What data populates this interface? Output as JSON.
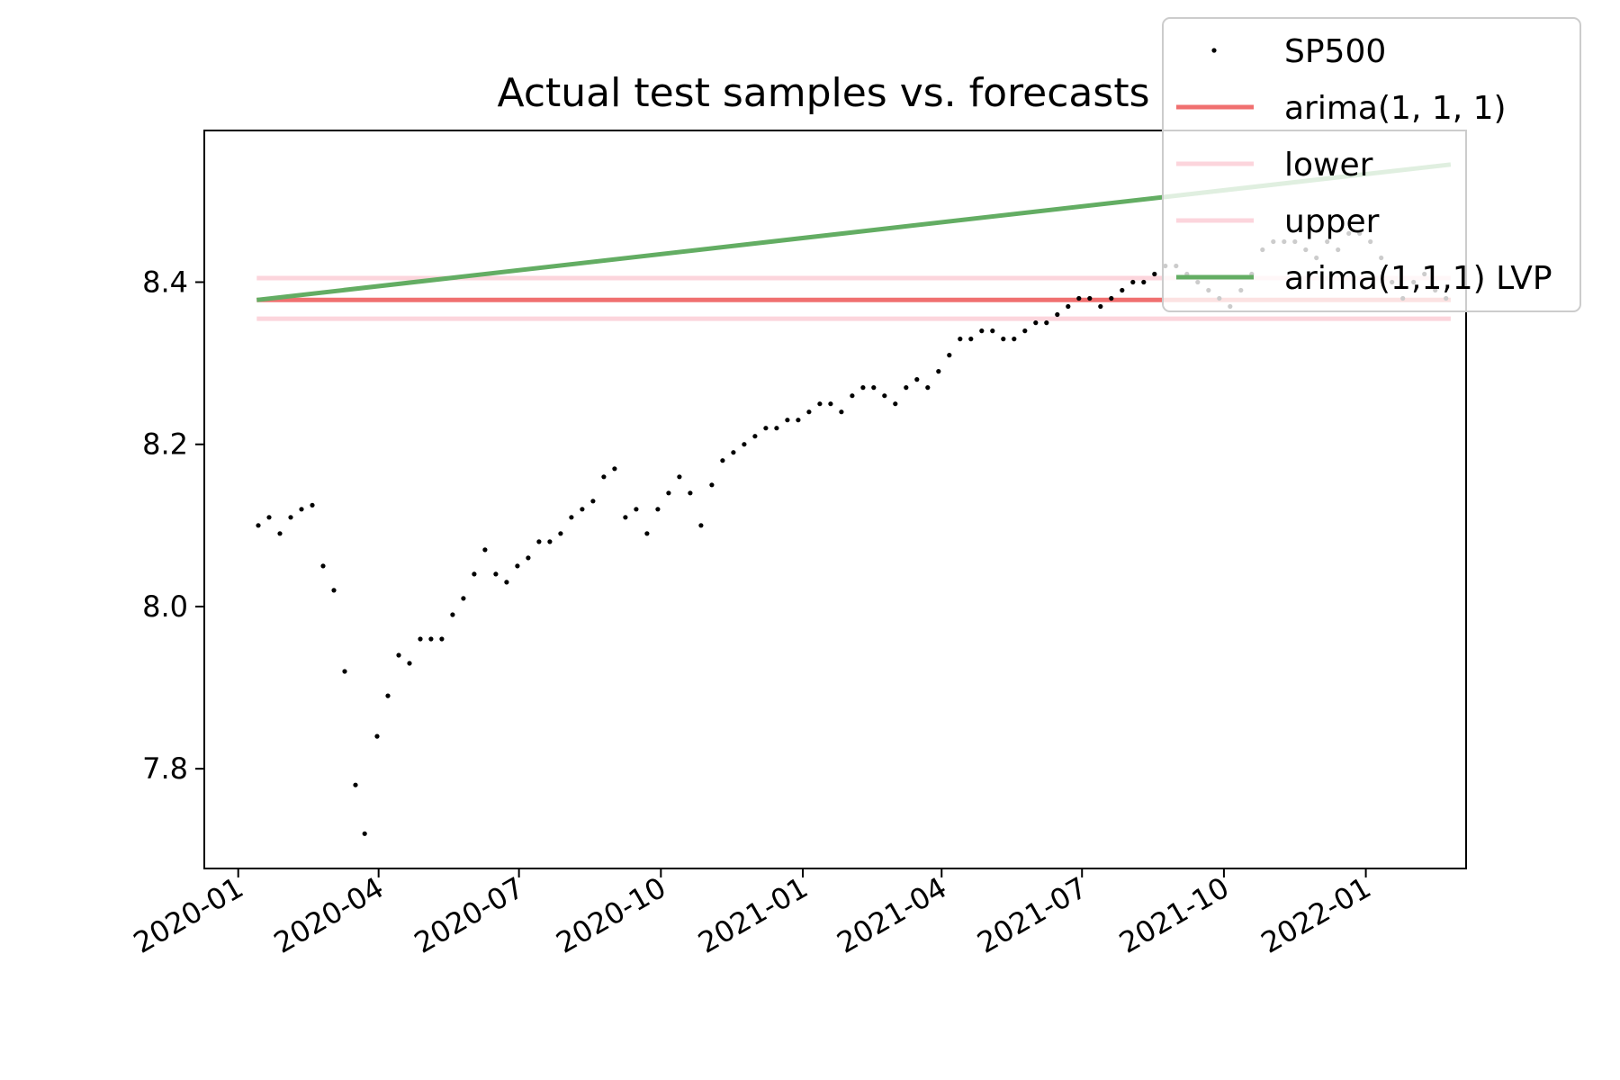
{
  "chart_data": {
    "type": "line",
    "title": "Actual test samples vs. forecasts",
    "xlabel": "",
    "ylabel": "",
    "xlim": [
      "2019-12-10",
      "2022-03-07"
    ],
    "ylim": [
      7.677,
      8.587
    ],
    "x_ticks": [
      "2020-01",
      "2020-04",
      "2020-07",
      "2020-10",
      "2021-01",
      "2021-04",
      "2021-07",
      "2021-10",
      "2022-01"
    ],
    "y_ticks": [
      7.8,
      8.0,
      8.2,
      8.4
    ],
    "grid": false,
    "legend_position": "top-right",
    "series": [
      {
        "name": "SP500",
        "kind": "scatter",
        "color": "#000000",
        "x": [
          "2020-01-14",
          "2020-01-21",
          "2020-01-28",
          "2020-02-04",
          "2020-02-11",
          "2020-02-18",
          "2020-02-25",
          "2020-03-03",
          "2020-03-10",
          "2020-03-17",
          "2020-03-23",
          "2020-03-31",
          "2020-04-07",
          "2020-04-14",
          "2020-04-21",
          "2020-04-28",
          "2020-05-05",
          "2020-05-12",
          "2020-05-19",
          "2020-05-26",
          "2020-06-02",
          "2020-06-09",
          "2020-06-16",
          "2020-06-23",
          "2020-06-30",
          "2020-07-07",
          "2020-07-14",
          "2020-07-21",
          "2020-07-28",
          "2020-08-04",
          "2020-08-11",
          "2020-08-18",
          "2020-08-25",
          "2020-09-01",
          "2020-09-08",
          "2020-09-15",
          "2020-09-22",
          "2020-09-29",
          "2020-10-06",
          "2020-10-13",
          "2020-10-20",
          "2020-10-27",
          "2020-11-03",
          "2020-11-10",
          "2020-11-17",
          "2020-11-24",
          "2020-12-01",
          "2020-12-08",
          "2020-12-15",
          "2020-12-22",
          "2020-12-29",
          "2021-01-05",
          "2021-01-12",
          "2021-01-19",
          "2021-01-26",
          "2021-02-02",
          "2021-02-09",
          "2021-02-16",
          "2021-02-23",
          "2021-03-02",
          "2021-03-09",
          "2021-03-16",
          "2021-03-23",
          "2021-03-30",
          "2021-04-06",
          "2021-04-13",
          "2021-04-20",
          "2021-04-27",
          "2021-05-04",
          "2021-05-11",
          "2021-05-18",
          "2021-05-25",
          "2021-06-01",
          "2021-06-08",
          "2021-06-15",
          "2021-06-22",
          "2021-06-29",
          "2021-07-06",
          "2021-07-13",
          "2021-07-20",
          "2021-07-27",
          "2021-08-03",
          "2021-08-10",
          "2021-08-17",
          "2021-08-24",
          "2021-08-31",
          "2021-09-07",
          "2021-09-14",
          "2021-09-21",
          "2021-09-28",
          "2021-10-05",
          "2021-10-12",
          "2021-10-19",
          "2021-10-26",
          "2021-11-02",
          "2021-11-09",
          "2021-11-16",
          "2021-11-23",
          "2021-11-30",
          "2021-12-07",
          "2021-12-14",
          "2021-12-21",
          "2021-12-28",
          "2022-01-04",
          "2022-01-11",
          "2022-01-18",
          "2022-01-25",
          "2022-02-01",
          "2022-02-08",
          "2022-02-15",
          "2022-02-22"
        ],
        "y": [
          8.1,
          8.11,
          8.09,
          8.11,
          8.12,
          8.125,
          8.05,
          8.02,
          7.92,
          7.78,
          7.72,
          7.84,
          7.89,
          7.94,
          7.93,
          7.96,
          7.96,
          7.96,
          7.99,
          8.01,
          8.04,
          8.07,
          8.04,
          8.03,
          8.05,
          8.06,
          8.08,
          8.08,
          8.09,
          8.11,
          8.12,
          8.13,
          8.16,
          8.17,
          8.11,
          8.12,
          8.09,
          8.12,
          8.14,
          8.16,
          8.14,
          8.1,
          8.15,
          8.18,
          8.19,
          8.2,
          8.21,
          8.22,
          8.22,
          8.23,
          8.23,
          8.24,
          8.25,
          8.25,
          8.24,
          8.26,
          8.27,
          8.27,
          8.26,
          8.25,
          8.27,
          8.28,
          8.27,
          8.29,
          8.31,
          8.33,
          8.33,
          8.34,
          8.34,
          8.33,
          8.33,
          8.34,
          8.35,
          8.35,
          8.36,
          8.37,
          8.38,
          8.38,
          8.37,
          8.38,
          8.39,
          8.4,
          8.4,
          8.41,
          8.42,
          8.42,
          8.41,
          8.4,
          8.39,
          8.38,
          8.37,
          8.39,
          8.41,
          8.44,
          8.45,
          8.45,
          8.45,
          8.44,
          8.43,
          8.45,
          8.44,
          8.46,
          8.46,
          8.45,
          8.43,
          8.4,
          8.38,
          8.4,
          8.41,
          8.39,
          8.38
        ]
      },
      {
        "name": "arima(1, 1, 1)",
        "kind": "line",
        "color": "#f07070",
        "x": [
          "2020-01-13",
          "2022-02-25"
        ],
        "y": [
          8.378,
          8.378
        ]
      },
      {
        "name": "lower",
        "kind": "line",
        "color": "#fcd5dc",
        "x": [
          "2020-01-13",
          "2022-02-25"
        ],
        "y": [
          8.355,
          8.355
        ]
      },
      {
        "name": "upper",
        "kind": "line",
        "color": "#fcd5dc",
        "x": [
          "2020-01-13",
          "2022-02-25"
        ],
        "y": [
          8.405,
          8.405
        ]
      },
      {
        "name": "arima(1,1,1) LVP",
        "kind": "line",
        "color": "#63ad63",
        "x": [
          "2020-01-13",
          "2022-02-25"
        ],
        "y": [
          8.378,
          8.545
        ]
      }
    ]
  }
}
